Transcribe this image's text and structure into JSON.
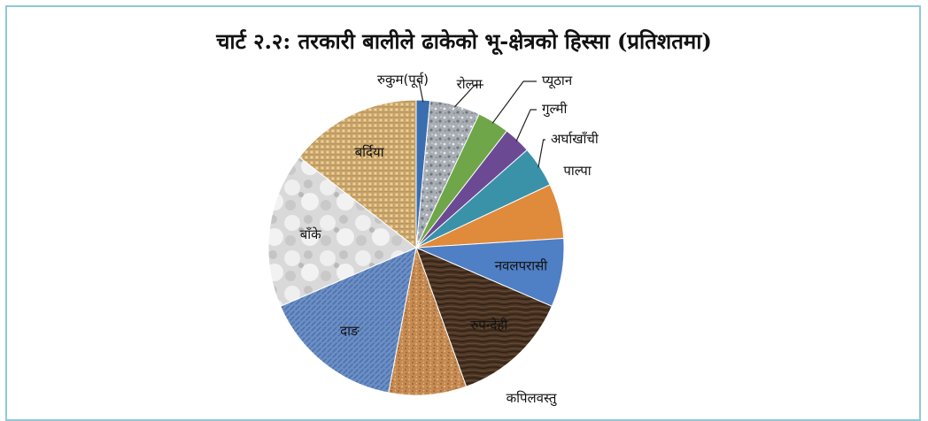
{
  "chart_data": {
    "type": "pie",
    "title": "चार्ट २.२: तरकारी बालीले ढाकेको भू-क्षेत्रको हिस्सा (प्रतिशतमा)",
    "start_angle_deg": 0,
    "direction": "clockwise",
    "slices": [
      {
        "label": "रुकुम(पूर्व)",
        "value": 1.5,
        "color": "#3a6eb0",
        "fill": "solid"
      },
      {
        "label": "रोल्पा",
        "value": 5.5,
        "color": "#9aa3ab",
        "fill": "granite"
      },
      {
        "label": "प्यूठान",
        "value": 3.5,
        "color": "#6fa64a",
        "fill": "solid"
      },
      {
        "label": "गुल्मी",
        "value": 3.0,
        "color": "#6c4a93",
        "fill": "solid"
      },
      {
        "label": "अर्घाखाँची",
        "value": 4.5,
        "color": "#3a92a8",
        "fill": "solid"
      },
      {
        "label": "पाल्पा",
        "value": 6.0,
        "color": "#e08a3c",
        "fill": "solid"
      },
      {
        "label": "नवलपरासी",
        "value": 7.5,
        "color": "#4f7fc4",
        "fill": "solid"
      },
      {
        "label": "रुपन्देही",
        "value": 13.0,
        "color": "#4a3424",
        "fill": "wood"
      },
      {
        "label": "कपिलवस्तु",
        "value": 8.5,
        "color": "#c88a4e",
        "fill": "cork"
      },
      {
        "label": "दाङ",
        "value": 15.5,
        "color": "#6a8fc6",
        "fill": "denim"
      },
      {
        "label": "बाँके",
        "value": 17.0,
        "color": "#d6d6d6",
        "fill": "marble"
      },
      {
        "label": "बर्दिया",
        "value": 14.5,
        "color": "#d8b57a",
        "fill": "burlap"
      }
    ]
  }
}
